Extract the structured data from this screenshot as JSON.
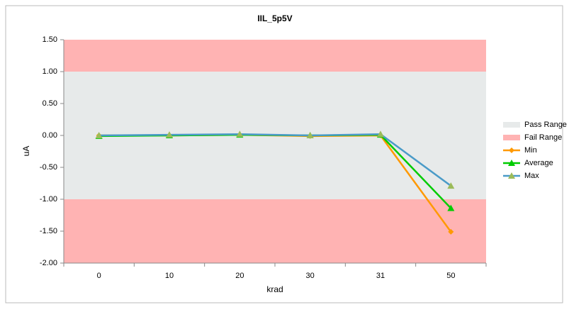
{
  "chart_data": {
    "type": "line",
    "title": "IIL_5p5V",
    "x_label": "krad",
    "y_label": "uA",
    "categories": [
      "0",
      "10",
      "20",
      "30",
      "31",
      "50"
    ],
    "ranges": [
      {
        "name": "Pass Range",
        "color": "#e7eaea",
        "bands": [
          [
            -1,
            1
          ]
        ]
      },
      {
        "name": "Fail Range",
        "color": "#ffb3b3",
        "bands": [
          [
            1,
            1.5
          ],
          [
            -2,
            -1
          ]
        ]
      }
    ],
    "series": [
      {
        "name": "Min",
        "color": "#ff9900",
        "marker": "diamond",
        "marker_color": "#ff9900",
        "values": [
          0,
          0,
          0.01,
          -0.01,
          0,
          -1.51
        ]
      },
      {
        "name": "Average",
        "color": "#00cc00",
        "marker": "triangle",
        "marker_color": "#00cc00",
        "values": [
          -0.01,
          0,
          0.01,
          0,
          0.01,
          -1.14
        ]
      },
      {
        "name": "Max",
        "color": "#4a9bc8",
        "marker": "triangle",
        "marker_color": "#9bbb59",
        "values": [
          0,
          0.01,
          0.02,
          0,
          0.02,
          -0.79
        ]
      }
    ],
    "ylim": [
      -2,
      1.5
    ],
    "yticks": [
      {
        "value": -2,
        "label": "-2.00"
      },
      {
        "value": -1.5,
        "label": "-1.50"
      },
      {
        "value": -1,
        "label": "-1.00"
      },
      {
        "value": -0.5,
        "label": "-0.50"
      },
      {
        "value": 0,
        "label": "0.00"
      },
      {
        "value": 0.5,
        "label": "0.50"
      },
      {
        "value": 1,
        "label": "1.00"
      },
      {
        "value": 1.5,
        "label": "1.50"
      }
    ],
    "legend": "right"
  }
}
